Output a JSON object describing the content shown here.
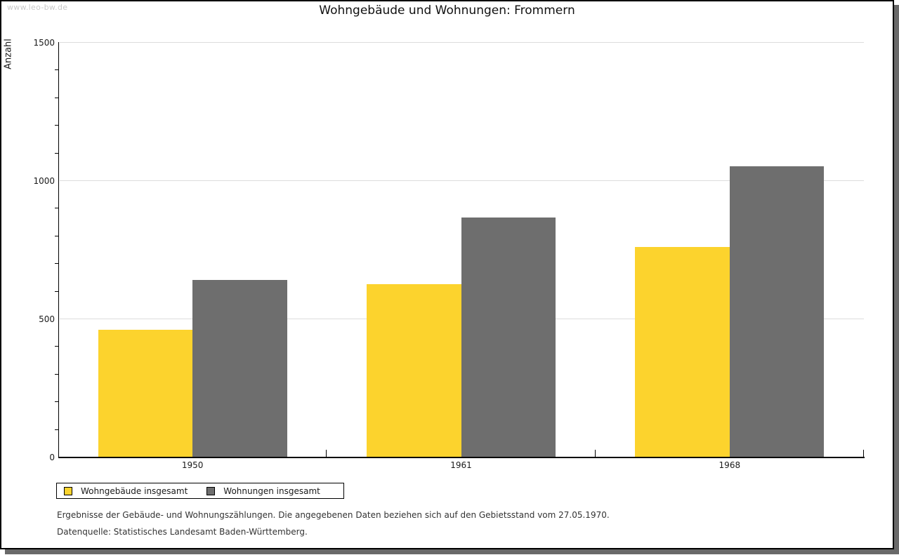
{
  "watermark": "www.leo-bw.de",
  "title": "Wohngebäude und Wohnungen: Frommern",
  "chart_data": {
    "type": "bar",
    "categories": [
      "1950",
      "1961",
      "1968"
    ],
    "series": [
      {
        "name": "Wohngebäude insgesamt",
        "color": "#FCD32D",
        "values": [
          460,
          625,
          760
        ]
      },
      {
        "name": "Wohnungen insgesamt",
        "color": "#6E6E6E",
        "values": [
          640,
          865,
          1050
        ]
      }
    ],
    "title": "Wohngebäude und Wohnungen: Frommern",
    "xlabel": "",
    "ylabel": "Anzahl",
    "ylim": [
      0,
      1500
    ],
    "y_major_ticks": [
      0,
      500,
      1000,
      1500
    ],
    "y_minor_step": 100,
    "grid": true,
    "legend_position": "bottom-left"
  },
  "colors": {
    "bar_yellow": "#FCD32D",
    "bar_gray": "#6E6E6E",
    "gridline": "#DCDCDC",
    "axis": "#000000",
    "watermark": "#C9C9C9",
    "frame_shadow": "#696969"
  },
  "footnotes": [
    "Ergebnisse der Gebäude- und Wohnungszählungen. Die angegebenen Daten beziehen sich auf den Gebietsstand vom 27.05.1970.",
    "Datenquelle: Statistisches Landesamt Baden-Württemberg."
  ]
}
